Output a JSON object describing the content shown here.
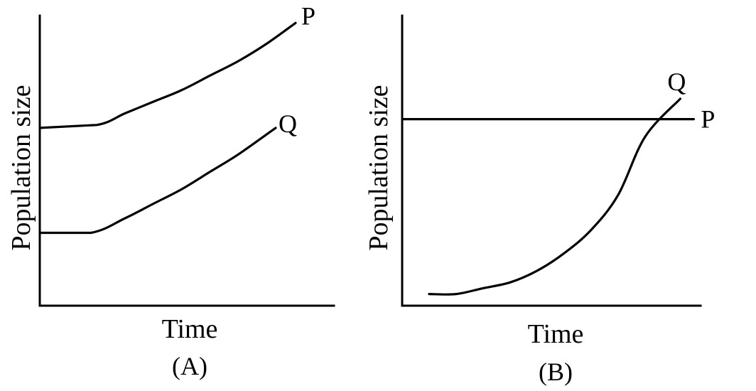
{
  "chart_data": [
    {
      "type": "line",
      "panel_label": "(A)",
      "xlabel": "Time",
      "ylabel": "Population size",
      "xlim": [
        0,
        10
      ],
      "ylim": [
        0,
        10
      ],
      "grid": false,
      "series": [
        {
          "name": "P",
          "x": [
            0,
            2,
            3,
            4,
            5,
            6,
            7,
            8,
            9
          ],
          "y": [
            6.1,
            6.2,
            6.6,
            7.0,
            7.4,
            7.9,
            8.4,
            9.0,
            9.7
          ]
        },
        {
          "name": "Q",
          "x": [
            0,
            1.8,
            3,
            4,
            5,
            6,
            7,
            8.3
          ],
          "y": [
            2.5,
            2.5,
            3.0,
            3.5,
            4.0,
            4.6,
            5.2,
            6.1
          ]
        }
      ]
    },
    {
      "type": "line",
      "panel_label": "(B)",
      "xlabel": "Time",
      "ylabel": "Population size",
      "xlim": [
        0,
        10
      ],
      "ylim": [
        0,
        10
      ],
      "grid": false,
      "series": [
        {
          "name": "P",
          "x": [
            0,
            10.8
          ],
          "y": [
            6.4,
            6.4
          ]
        },
        {
          "name": "Q",
          "x": [
            1,
            2,
            3,
            4,
            5,
            6,
            7,
            8,
            9,
            10.3
          ],
          "y": [
            0.4,
            0.4,
            0.6,
            0.8,
            1.2,
            1.8,
            2.6,
            3.8,
            5.8,
            7.1
          ]
        }
      ]
    }
  ]
}
